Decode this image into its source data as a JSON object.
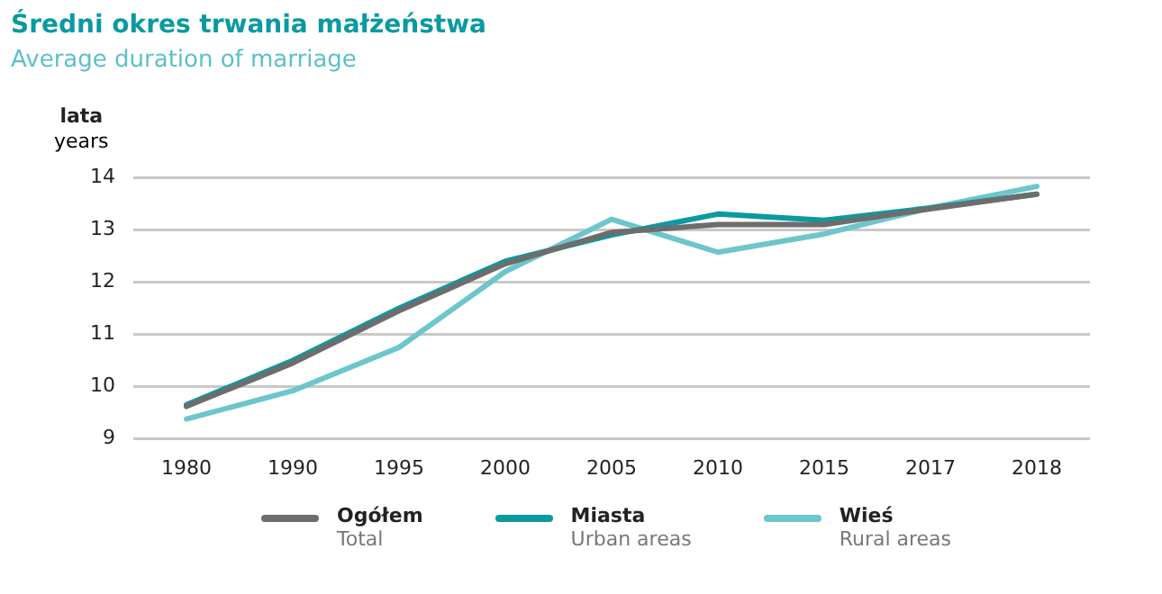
{
  "chart_data": {
    "type": "line",
    "title": "Średni okres trwania małżeństwa",
    "subtitle": "Average duration of marriage",
    "ylabel": "lata\nyears",
    "categories": [
      "1980",
      "1990",
      "1995",
      "2000",
      "2005",
      "2010",
      "2015",
      "2017",
      "2018"
    ],
    "series": [
      {
        "name": "Ogółem\nTotal",
        "color": "#6d6d6d",
        "values": [
          9.62,
          10.45,
          11.45,
          12.35,
          12.95,
          13.1,
          13.1,
          13.4,
          13.68
        ]
      },
      {
        "name": "Miasta\nUrban areas",
        "color": "#0a9aa0",
        "values": [
          9.65,
          10.5,
          11.5,
          12.4,
          12.9,
          13.3,
          13.18,
          13.42,
          13.68
        ]
      },
      {
        "name": "Wieś\nRural areas",
        "color": "#6cc6cc",
        "values": [
          9.38,
          9.92,
          10.75,
          12.2,
          13.2,
          12.57,
          12.92,
          13.42,
          13.83
        ]
      }
    ],
    "ylim": [
      9,
      14
    ],
    "yticks": [
      9,
      10,
      11,
      12,
      13,
      14
    ],
    "grid": "y",
    "legend": "bottom",
    "marker": "none",
    "line_style": "solid"
  }
}
